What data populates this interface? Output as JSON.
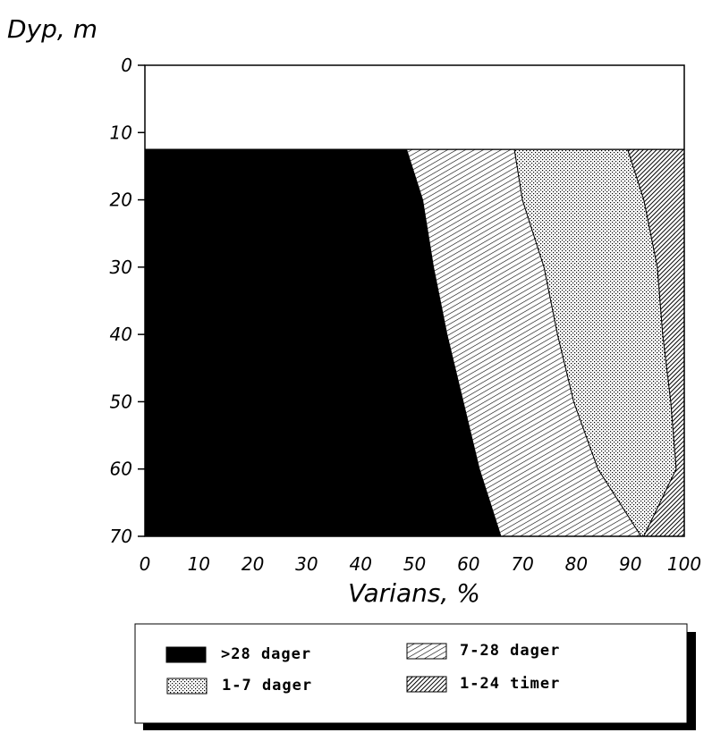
{
  "chart_data": {
    "type": "area",
    "subtype": "stacked-100-percent-horizontal",
    "ylabel": "Dyp, m",
    "xlabel": "Varians, %",
    "xlim": [
      0,
      100
    ],
    "ylim": [
      0,
      70
    ],
    "y_inverted": true,
    "data_start_depth": 12.5,
    "x_ticks": [
      "0",
      "10",
      "20",
      "30",
      "40",
      "50",
      "60",
      "70",
      "80",
      "90",
      "100"
    ],
    "y_ticks": [
      "0",
      "10",
      "20",
      "30",
      "40",
      "50",
      "60",
      "70"
    ],
    "depth": [
      12.5,
      20,
      30,
      40,
      50,
      60,
      70
    ],
    "series": [
      {
        "name": ">28 dager",
        "pattern": "solid-black",
        "values": [
          48.5,
          51.5,
          53.5,
          56,
          59,
          62,
          66
        ]
      },
      {
        "name": "7-28 dager",
        "pattern": "diagonal-hatch",
        "values": [
          20,
          18.5,
          20.5,
          20.5,
          20.5,
          22,
          26
        ]
      },
      {
        "name": "1-7 dager",
        "pattern": "dotted",
        "values": [
          21,
          22.5,
          21,
          19.5,
          18,
          14.5,
          0.5
        ]
      },
      {
        "name": "1-24 timer",
        "pattern": "dense-crosshatch",
        "values": [
          10.5,
          7.5,
          5,
          4,
          2.5,
          1.5,
          7.5
        ]
      }
    ],
    "legend_position": "bottom"
  }
}
